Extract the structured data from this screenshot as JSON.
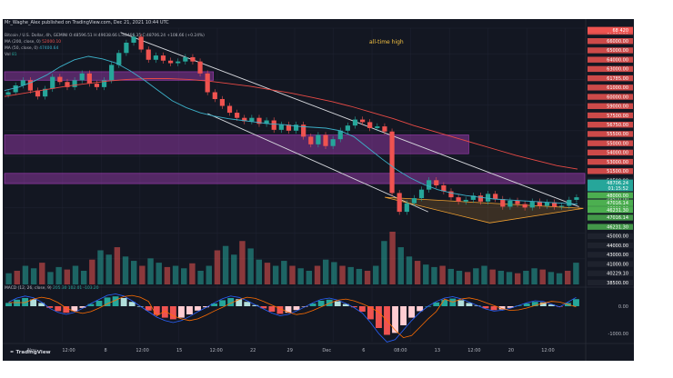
{
  "header": {
    "publisher": "Mr_Waghe_Alex published on TradingView.com, Dec 21, 2021 10:44 UTC",
    "symbol_line": "Bitcoin / U.S. Dollar, 4h, GEMINI O:48596.51 H:49038.66 L:48466.35 C:48706.24 +108.66 (+0.24%)",
    "ma200_label": "MA (200, close, 0)",
    "ma200_value": "52000.10",
    "ma50_label": "MA (50, close, 0)",
    "ma50_value": "47400.64",
    "vol_label": "Vol",
    "vol_value": "81",
    "macd_label": "MACD (12, 26, close, 9)",
    "macd_values": "205.30  102.01  -103.20"
  },
  "annotation": "all-time high",
  "brand": "TradingView",
  "colors": {
    "background": "#131722",
    "candle_up": "#26a69a",
    "candle_down": "#ef5350",
    "ma200": "#e84a45",
    "ma50": "#3cb0c8",
    "channel": "#d7d9de",
    "zone": "#a33db8",
    "triangle": "#f0a030",
    "ath_text": "#f5c242"
  },
  "chart_data": [
    {
      "type": "line",
      "title": "Bitcoin / U.S. Dollar, 4h, GEMINI",
      "y_ticks": [
        "67000.00",
        "66000.00",
        "65000.00",
        "64000.00",
        "63000.00",
        "61785.00",
        "61000.00",
        "60000.00",
        "59000.00",
        "57500.00",
        "56750.00",
        "55500.00",
        "55000.00",
        "54000.00",
        "53000.00",
        "51500.00",
        "50500.00",
        "50000.00",
        "49500.00",
        "48000.00",
        "47016.14",
        "46231.30",
        "45000.00",
        "44000.00",
        "43000.00",
        "41000.00",
        "40229.10",
        "38500.00"
      ],
      "y_range": [
        38500,
        68500
      ],
      "price_tags": [
        {
          "label": "68 420",
          "color": "#ef5350"
        },
        {
          "label": "48706.24",
          "color": "#26a69a"
        },
        {
          "label": "01:15:52",
          "color": "#26a69a"
        },
        {
          "label": "48000.00",
          "color": "#4caf50"
        },
        {
          "label": "47016.14",
          "color": "#4caf50"
        },
        {
          "label": "46231.30",
          "color": "#4caf50"
        }
      ],
      "x_ticks": [
        "Nov",
        "12:00",
        "8",
        "12:00",
        "15",
        "12:00",
        "22",
        "29",
        "Dec",
        "6",
        "08:00",
        "13",
        "12:00",
        "20",
        "12:00"
      ],
      "series": [
        {
          "name": "Bitcoin / U.S. Dollar",
          "values": [
            61000,
            61800,
            62400,
            61200,
            60500,
            61400,
            62800,
            62200,
            61600,
            62400,
            63200,
            62000,
            61600,
            62400,
            64200,
            65600,
            66800,
            67500,
            66000,
            64800,
            65300,
            64700,
            64400,
            64600,
            65100,
            64600,
            63200,
            61000,
            60200,
            59400,
            58600,
            58000,
            57600,
            58000,
            57300,
            57700,
            56600,
            57200,
            56500,
            57200,
            55800,
            54900,
            56000,
            54700,
            55500,
            56500,
            57100,
            57800,
            57500,
            56800,
            57000,
            56400,
            49200,
            47000,
            48000,
            48600,
            49600,
            50700,
            50100,
            49400,
            48700,
            48200,
            48400,
            48900,
            48200,
            49100,
            48500,
            47600,
            48300,
            47900,
            47500,
            48200,
            47700,
            48100,
            47600,
            47700,
            48400,
            48700
          ]
        },
        {
          "name": "MA (200, close, 0)",
          "values": [
            60500,
            60900,
            61300,
            61700,
            62000,
            62300,
            62500,
            62600,
            62600,
            62500,
            62300,
            62000,
            61700,
            61300,
            60900,
            60400,
            59900,
            59300,
            58600,
            57900,
            57100,
            56400,
            55700,
            55000,
            54300,
            53600,
            53000,
            52400,
            52000
          ]
        },
        {
          "name": "MA (50, close, 0)",
          "values": [
            61200,
            61600,
            62200,
            63000,
            64000,
            64800,
            65200,
            64900,
            64400,
            63500,
            62400,
            61200,
            60000,
            59200,
            58600,
            58200,
            57900,
            57700,
            57500,
            57300,
            57200,
            57000,
            56900,
            56800,
            56500,
            55800,
            54500,
            53200,
            52000,
            51000,
            50200,
            49600,
            49200,
            48900,
            48700,
            48500,
            48400,
            48300,
            48200,
            48100,
            48000,
            47900
          ]
        }
      ]
    },
    {
      "type": "bar",
      "title": "Vol",
      "values": [
        18,
        22,
        30,
        26,
        35,
        20,
        28,
        24,
        30,
        22,
        40,
        55,
        48,
        60,
        45,
        38,
        30,
        42,
        35,
        28,
        30,
        26,
        34,
        22,
        30,
        55,
        62,
        48,
        70,
        58,
        40,
        35,
        30,
        38,
        30,
        26,
        22,
        30,
        40,
        36,
        30,
        28,
        25,
        22,
        30,
        70,
        85,
        60,
        45,
        38,
        32,
        28,
        30,
        25,
        22,
        20,
        26,
        30,
        24,
        22,
        20,
        18,
        22,
        26,
        24,
        20,
        18,
        22,
        35
      ]
    },
    {
      "type": "bar",
      "title": "MACD (12, 26, close, 9)",
      "y_ticks": [
        "0.00",
        "-1000.00"
      ],
      "y_range": [
        -1300,
        600
      ],
      "values": [
        120,
        240,
        300,
        250,
        120,
        -60,
        -180,
        -240,
        -180,
        -60,
        80,
        200,
        320,
        360,
        300,
        160,
        0,
        -160,
        -320,
        -420,
        -480,
        -420,
        -300,
        -160,
        -40,
        100,
        220,
        300,
        260,
        160,
        40,
        -80,
        -200,
        -280,
        -240,
        -140,
        -20,
        100,
        200,
        240,
        180,
        80,
        -40,
        -200,
        -480,
        -800,
        -1050,
        -980,
        -700,
        -420,
        -180,
        0,
        140,
        240,
        280,
        220,
        120,
        20,
        -80,
        -140,
        -120,
        -60,
        20,
        100,
        160,
        140,
        60,
        -20,
        120,
        260
      ]
    }
  ]
}
